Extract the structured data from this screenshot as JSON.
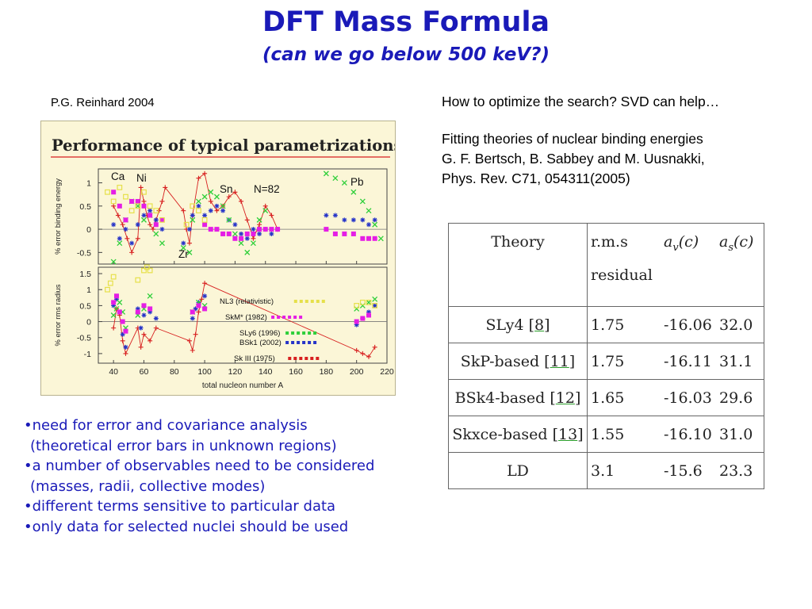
{
  "slide": {
    "title": "DFT Mass Formula",
    "subtitle": "(can we go below 500 keV?)"
  },
  "credit": "P.G. Reinhard 2004",
  "reference": {
    "line1": "How to optimize the search? SVD can help…",
    "line2": "Fitting theories of nuclear binding energies",
    "line3": "G. F. Bertsch, B. Sabbey and M. Uusnakki,",
    "line4": "Phys. Rev. C71, 054311(2005)"
  },
  "bullets": [
    "•need for error and covariance analysis",
    " (theoretical error bars in unknown regions)",
    "•a number of observables need to be considered",
    " (masses, radii, collective modes)",
    "•different terms sensitive to particular data",
    "•only data for selected nuclei should be used"
  ],
  "table": {
    "header": {
      "theory": "Theory",
      "rms_line1": "r.m.s",
      "rms_line2": "residual",
      "av": "a",
      "av_sub": "v",
      "av_arg": "(c)",
      "as": "a",
      "as_sub": "s",
      "as_arg": "(c)"
    },
    "rows": [
      {
        "name": "SLy4 [",
        "ref": "8",
        "close": "]",
        "rms": "1.75",
        "av": "-16.06",
        "as": "32.0"
      },
      {
        "name": "SkP-based [",
        "ref": "11",
        "close": "]",
        "rms": "1.75",
        "av": "-16.11",
        "as": "31.1"
      },
      {
        "name": "BSk4-based [",
        "ref": "12",
        "close": "]",
        "rms": "1.65",
        "av": "-16.03",
        "as": "29.6"
      },
      {
        "name": "Skxce-based [",
        "ref": "13",
        "close": "]",
        "rms": "1.55",
        "av": "-16.10",
        "as": "31.0"
      },
      {
        "name": "LD",
        "ref": "",
        "close": "",
        "rms": "3.1",
        "av": "-15.6",
        "as": "23.3"
      }
    ]
  },
  "figure": {
    "heading": "Performance of typical parametrizations",
    "colors": {
      "red": "#d71f1f",
      "blue": "#2634c8",
      "green": "#2fcf3a",
      "magenta": "#e51ee5",
      "yellow": "#e6e04a"
    },
    "chart_data": [
      {
        "type": "scatter",
        "ylabel": "% error binding energy",
        "xlabel": "",
        "xlim": [
          30,
          220
        ],
        "ylim": [
          -0.75,
          1.3
        ],
        "yticks": [
          "1",
          "0.5",
          "0",
          "-0.5"
        ],
        "annotations": [
          "Ca",
          "Ni",
          "Sn",
          "N=82",
          "Zr",
          "Pb"
        ],
        "series": [
          {
            "color": "red",
            "x": [
              40,
              43,
              46,
              49,
              52,
              56,
              58,
              60,
              62,
              64,
              66,
              68,
              70,
              72,
              74,
              86,
              88,
              90,
              92,
              96,
              100,
              104,
              108,
              112,
              116,
              120,
              124,
              128,
              132,
              136,
              140,
              144,
              148
            ],
            "y": [
              0.5,
              0.3,
              0.1,
              -0.2,
              -0.5,
              -0.2,
              0.9,
              0.6,
              0.3,
              0.1,
              0.0,
              0.2,
              0.4,
              0.6,
              0.9,
              0.4,
              0.0,
              -0.3,
              0.3,
              1.1,
              1.2,
              0.6,
              0.4,
              0.5,
              0.7,
              0.8,
              0.6,
              0.2,
              -0.2,
              0.1,
              0.5,
              0.3,
              0.0
            ]
          },
          {
            "color": "blue",
            "x": [
              40,
              44,
              48,
              52,
              56,
              60,
              64,
              68,
              72,
              86,
              90,
              92,
              96,
              100,
              104,
              108,
              112,
              116,
              120,
              124,
              128,
              132,
              136,
              140,
              144,
              148,
              180,
              186,
              192,
              198,
              204,
              208,
              212
            ],
            "y": [
              0.1,
              -0.2,
              0.0,
              -0.3,
              0.1,
              0.3,
              0.4,
              0.2,
              0.0,
              -0.3,
              0.0,
              0.3,
              0.5,
              0.3,
              0.4,
              0.5,
              0.4,
              0.2,
              0.1,
              -0.1,
              -0.2,
              0.0,
              -0.1,
              0.0,
              -0.1,
              0.0,
              0.3,
              0.3,
              0.2,
              0.2,
              0.2,
              0.1,
              0.2
            ]
          },
          {
            "color": "green",
            "x": [
              40,
              44,
              48,
              52,
              56,
              60,
              64,
              68,
              72,
              86,
              90,
              92,
              96,
              100,
              104,
              108,
              112,
              116,
              120,
              124,
              128,
              132,
              136,
              140,
              180,
              186,
              192,
              198,
              204,
              208,
              212,
              216
            ],
            "y": [
              -0.7,
              -0.3,
              0.2,
              0.6,
              0.5,
              0.2,
              0.3,
              -0.1,
              -0.3,
              -0.4,
              -0.5,
              0.2,
              0.6,
              0.7,
              0.8,
              0.7,
              0.5,
              0.2,
              -0.1,
              -0.3,
              -0.5,
              -0.3,
              0.2,
              0.4,
              1.2,
              1.1,
              1.0,
              0.8,
              0.6,
              0.4,
              0.1,
              -0.2
            ]
          },
          {
            "color": "magenta",
            "x": [
              40,
              44,
              48,
              52,
              56,
              60,
              64,
              68,
              72,
              100,
              104,
              108,
              112,
              116,
              120,
              124,
              128,
              132,
              136,
              140,
              144,
              148,
              180,
              186,
              192,
              198,
              204,
              208,
              212
            ],
            "y": [
              0.8,
              0.5,
              0.2,
              0.6,
              0.6,
              0.5,
              0.3,
              0.1,
              0.2,
              0.1,
              0.0,
              0.0,
              -0.1,
              -0.1,
              -0.2,
              -0.2,
              -0.1,
              -0.1,
              0.0,
              0.0,
              0.0,
              0.0,
              0.0,
              -0.1,
              -0.1,
              -0.1,
              -0.2,
              -0.2,
              -0.2
            ]
          },
          {
            "color": "yellow",
            "x": [
              36,
              40,
              44,
              48,
              52,
              56,
              60,
              64,
              68,
              72,
              88,
              92,
              96,
              100
            ],
            "y": [
              0.8,
              0.6,
              0.9,
              0.7,
              0.4,
              0.5,
              0.8,
              0.5,
              0.4,
              0.2,
              0.1,
              0.5,
              0.4,
              0.2
            ]
          }
        ]
      },
      {
        "type": "scatter",
        "ylabel": "% error rms radius",
        "xlabel": "total nucleon number A",
        "xlim": [
          30,
          220
        ],
        "ylim": [
          -1.3,
          1.7
        ],
        "xticks": [
          "40",
          "60",
          "80",
          "100",
          "120",
          "140",
          "160",
          "180",
          "200",
          "220"
        ],
        "yticks": [
          "1.5",
          "1",
          "0.5",
          "0",
          "-0.5",
          "-1"
        ],
        "legend": [
          "NL3 (relativistic)",
          "SkM* (1982)",
          "SLy6 (1996)",
          "BSk1 (2002)",
          "Sk III (1975)"
        ],
        "series": [
          {
            "color": "red",
            "x": [
              40,
              42,
              44,
              46,
              48,
              56,
              58,
              60,
              64,
              68,
              90,
              92,
              94,
              96,
              98,
              100,
              200,
              204,
              208,
              212
            ],
            "y": [
              -0.2,
              0.4,
              0.2,
              -0.6,
              -1.0,
              -0.2,
              -0.8,
              -0.4,
              -0.6,
              -0.2,
              -0.6,
              -0.9,
              -0.4,
              0.3,
              0.7,
              1.2,
              -0.9,
              -1.0,
              -1.1,
              -0.8
            ]
          },
          {
            "color": "blue",
            "x": [
              40,
              42,
              44,
              46,
              48,
              56,
              58,
              60,
              64,
              68,
              92,
              94,
              96,
              100,
              200,
              204,
              208,
              212
            ],
            "y": [
              0.5,
              0.7,
              0.3,
              -0.4,
              -0.8,
              0.4,
              -0.2,
              0.2,
              0.3,
              0.1,
              0.1,
              0.4,
              0.6,
              0.8,
              -0.1,
              0.1,
              0.3,
              0.5
            ]
          },
          {
            "color": "green",
            "x": [
              40,
              42,
              44,
              46,
              48,
              56,
              60,
              64,
              92,
              96,
              100,
              200,
              204,
              208,
              212
            ],
            "y": [
              0.2,
              0.4,
              0.6,
              0.3,
              -0.2,
              0.2,
              0.4,
              0.8,
              0.3,
              0.6,
              0.5,
              0.4,
              0.5,
              0.6,
              0.7
            ]
          },
          {
            "color": "magenta",
            "x": [
              40,
              42,
              44,
              46,
              48,
              56,
              60,
              64,
              92,
              96,
              100,
              200,
              204,
              208
            ],
            "y": [
              0.6,
              0.8,
              0.3,
              0.0,
              -0.3,
              0.3,
              0.5,
              0.4,
              0.3,
              0.5,
              0.4,
              0.0,
              0.1,
              0.2
            ]
          },
          {
            "color": "yellow",
            "x": [
              36,
              38,
              40,
              56,
              60,
              62,
              64,
              200,
              204,
              208,
              212
            ],
            "y": [
              1.0,
              1.2,
              1.4,
              1.3,
              1.6,
              1.7,
              1.6,
              0.5,
              0.6,
              0.6,
              0.5
            ]
          }
        ]
      }
    ]
  }
}
